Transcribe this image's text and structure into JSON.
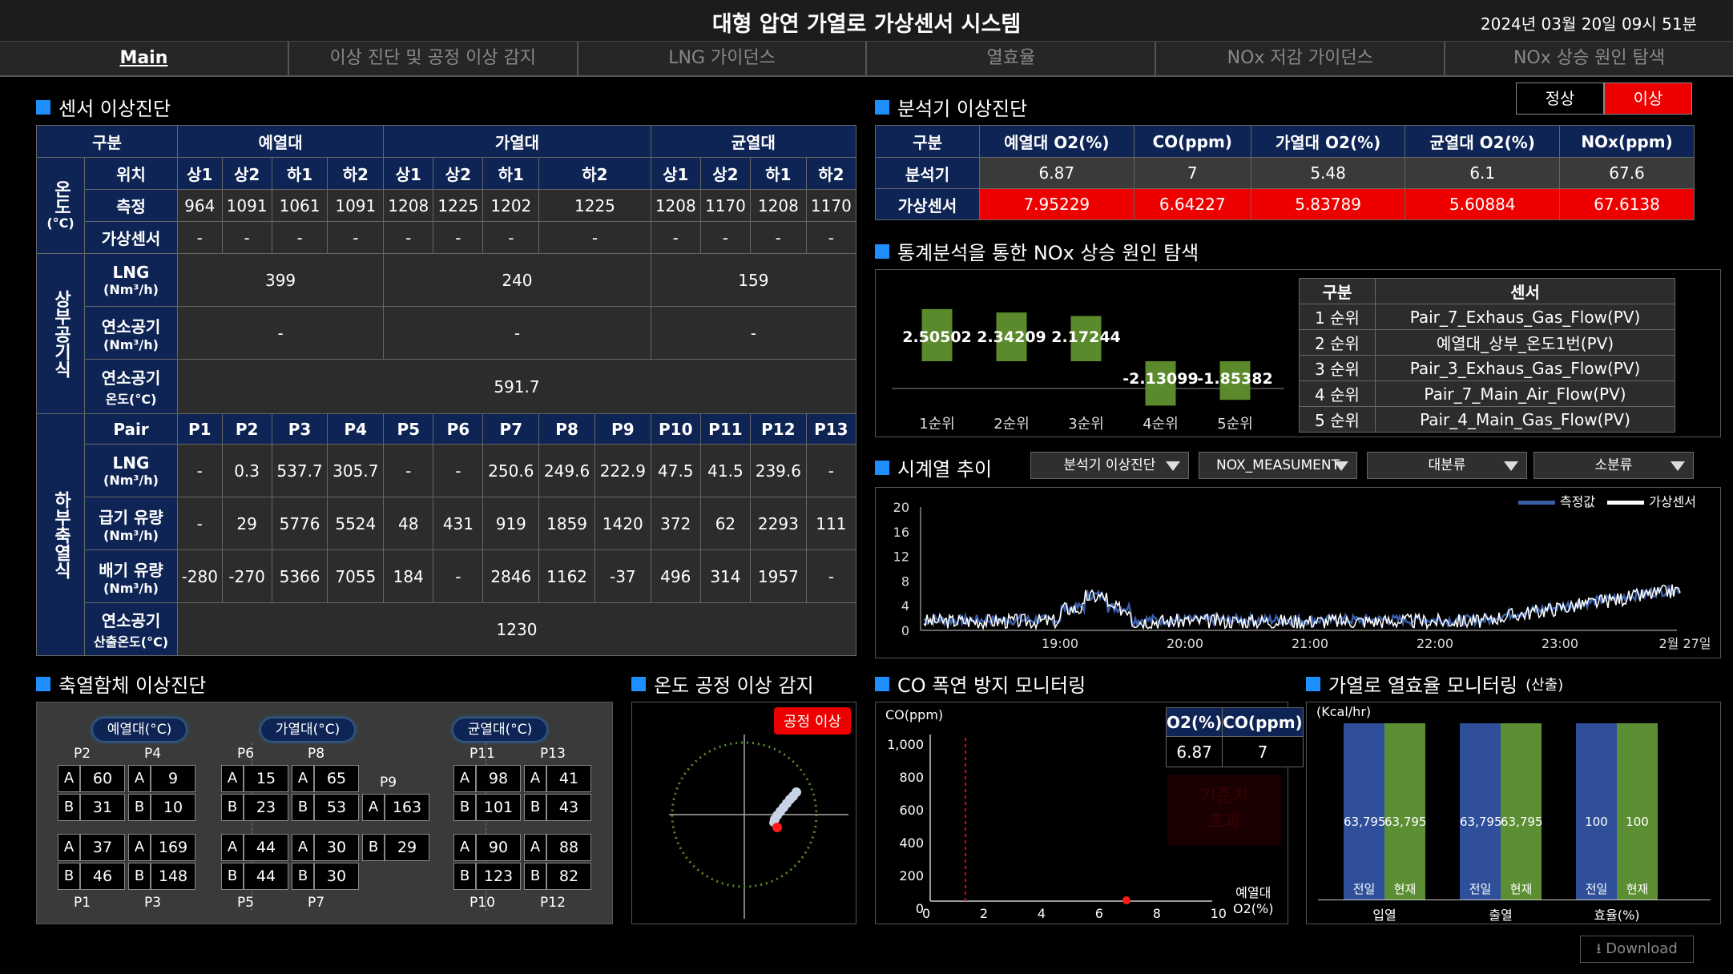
{
  "header": {
    "title": "대형 압연 가열로 가상센서 시스템",
    "datetime": "2024년 03월 20일 09시 51분"
  },
  "nav": {
    "tabs": [
      "Main",
      "이상 진단 및 공정 이상 감지",
      "LNG 가이던스",
      "열효율",
      "NOx 저감 가이던스",
      "NOx 상승 원인 탐색"
    ]
  },
  "sensor": {
    "title": "센서 이상진단",
    "col_group": "구분",
    "zones": [
      "예열대",
      "가열대",
      "균열대"
    ],
    "temp": {
      "group_label": "온도",
      "unit": "(°C)",
      "rows": [
        "위치",
        "측정",
        "가상센서"
      ],
      "positions": [
        "상1",
        "상2",
        "하1",
        "하2",
        "상1",
        "상2",
        "하1",
        "하2",
        "상1",
        "상2",
        "하1",
        "하2"
      ],
      "measured": [
        "964",
        "1091",
        "1061",
        "1091",
        "1208",
        "1225",
        "1202",
        "1225",
        "1208",
        "1170",
        "1208",
        "1170"
      ],
      "virtual": [
        "-",
        "-",
        "-",
        "-",
        "-",
        "-",
        "-",
        "-",
        "-",
        "-",
        "-",
        "-"
      ]
    },
    "upper": {
      "group_label": "상부공기식",
      "lng_label": "LNG",
      "lng_unit": "(Nm³/h)",
      "lng": [
        "399",
        "240",
        "159"
      ],
      "air_label": "연소공기",
      "air_unit": "(Nm³/h)",
      "air": [
        "-",
        "-",
        "-"
      ],
      "airtemp_label": "연소공기",
      "airtemp_unit": "온도(°C)",
      "airtemp": "591.7"
    },
    "lower": {
      "group_label": "하부축열식",
      "pair_label": "Pair",
      "pairs": [
        "P1",
        "P2",
        "P3",
        "P4",
        "P5",
        "P6",
        "P7",
        "P8",
        "P9",
        "P10",
        "P11",
        "P12",
        "P13"
      ],
      "lng_label": "LNG",
      "lng_unit": "(Nm³/h)",
      "lng": [
        "-",
        "0.3",
        "537.7",
        "305.7",
        "-",
        "-",
        "250.6",
        "249.6",
        "222.9",
        "47.5",
        "41.5",
        "239.6",
        "-"
      ],
      "supply_label": "급기 유량",
      "supply_unit": "(Nm³/h)",
      "supply": [
        "-",
        "29",
        "5776",
        "5524",
        "48",
        "431",
        "919",
        "1859",
        "1420",
        "372",
        "62",
        "2293",
        "111"
      ],
      "exhaust_label": "배기 유량",
      "exhaust_unit": "(Nm³/h)",
      "exhaust": [
        "-280",
        "-270",
        "5366",
        "7055",
        "184",
        "-",
        "2846",
        "1162",
        "-37",
        "496",
        "314",
        "1957",
        "-"
      ],
      "calc_label": "연소공기",
      "calc_unit": "산출온도(°C)",
      "calc": "1230"
    }
  },
  "analyzer": {
    "title": "분석기 이상진단",
    "normal": "정상",
    "abnormal": "이상",
    "headers": [
      "구분",
      "예열대 O2(%)",
      "CO(ppm)",
      "가열대 O2(%)",
      "균열대 O2(%)",
      "NOx(ppm)"
    ],
    "analyzer_label": "분석기",
    "analyzer_vals": [
      "6.87",
      "7",
      "5.48",
      "6.1",
      "67.6"
    ],
    "virtual_label": "가상센서",
    "virtual_vals": [
      "7.95229",
      "6.64227",
      "5.83789",
      "5.60884",
      "67.6138"
    ]
  },
  "stats": {
    "title": "통계분석을 통한 NOx 상승 원인 탐색",
    "chart_data": {
      "type": "bar",
      "categories": [
        "1순위",
        "2순위",
        "3순위",
        "4순위",
        "5순위"
      ],
      "values": [
        2.50502,
        2.34209,
        2.17244,
        -2.13099,
        -1.85382
      ],
      "labels": [
        "2.50502",
        "2.34209",
        "2.17244",
        "-2.13099",
        "-1.85382"
      ],
      "color": "#5a8a2c"
    },
    "rank_headers": [
      "구분",
      "센서"
    ],
    "ranks": [
      {
        "rank": "1 순위",
        "sensor": "Pair_7_Exhaus_Gas_Flow(PV)"
      },
      {
        "rank": "2 순위",
        "sensor": "예열대_상부_온도1번(PV)"
      },
      {
        "rank": "3 순위",
        "sensor": "Pair_3_Exhaus_Gas_Flow(PV)"
      },
      {
        "rank": "4 순위",
        "sensor": "Pair_7_Main_Air_Flow(PV)"
      },
      {
        "rank": "5 순위",
        "sensor": "Pair_4_Main_Gas_Flow(PV)"
      }
    ]
  },
  "timeseries": {
    "title": "시계열 추이",
    "dropdowns": [
      "분석기 이상진단",
      "NOX_MEASUMENT",
      "대분류",
      "소분류"
    ],
    "legend": [
      "측정값",
      "가상센서"
    ],
    "chart_data": {
      "type": "line",
      "y_ticks": [
        "20",
        "16",
        "12",
        "8",
        "4",
        "0"
      ],
      "ylim": [
        0,
        20
      ],
      "x_ticks": [
        "19:00",
        "20:00",
        "21:00",
        "22:00",
        "23:00",
        "2월 27일"
      ],
      "series": [
        {
          "name": "측정값",
          "color": "#3a5fa8"
        },
        {
          "name": "가상센서",
          "color": "#ffffff"
        }
      ]
    }
  },
  "regen": {
    "title": "축열함체 이상진단",
    "zones": [
      "예열대(°C)",
      "가열대(°C)",
      "균열대(°C)"
    ],
    "a": "A",
    "b": "B",
    "units": [
      {
        "label": "P2",
        "a": "60",
        "b": "31"
      },
      {
        "label": "P4",
        "a": "9",
        "b": "10"
      },
      {
        "label": "P1",
        "a": "37",
        "b": "46"
      },
      {
        "label": "P3",
        "a": "169",
        "b": "148"
      },
      {
        "label": "P6",
        "a": "15",
        "b": "23"
      },
      {
        "label": "P8",
        "a": "65",
        "b": "53"
      },
      {
        "label": "P9",
        "a": "163",
        "b": ""
      },
      {
        "label": "P5",
        "a": "44",
        "b": "44"
      },
      {
        "label": "P7",
        "a": "30",
        "b": "30"
      },
      {
        "label": "",
        "a": "",
        "b": "29"
      },
      {
        "label": "P11",
        "a": "98",
        "b": "101"
      },
      {
        "label": "P13",
        "a": "41",
        "b": "43"
      },
      {
        "label": "P10",
        "a": "90",
        "b": "123"
      },
      {
        "label": "P12",
        "a": "88",
        "b": "82"
      }
    ]
  },
  "process": {
    "title": "온도 공정 이상 감지",
    "alert": "공정 이상"
  },
  "co": {
    "title": "CO 폭연 방지 모니터링",
    "ylabel": "CO(ppm)",
    "y_ticks": [
      "1,000",
      "800",
      "600",
      "400",
      "200",
      "0"
    ],
    "x_ticks": [
      "0",
      "2",
      "4",
      "6",
      "8",
      "10"
    ],
    "xlabel1": "예열대",
    "xlabel2": "O2(%)",
    "o2_head": "O2(%)",
    "co_head": "CO(ppm)",
    "o2": "6.87",
    "co": "7",
    "warn1": "기준치",
    "warn2": "초과"
  },
  "eff": {
    "title": "가열로 열효율 모니터링",
    "title_sub": "(산출)",
    "unit": "(Kcal/hr)",
    "groups": [
      {
        "name": "입열",
        "prev": "63,795",
        "cur": "63,795"
      },
      {
        "name": "출열",
        "prev": "63,795",
        "cur": "63,795"
      },
      {
        "name": "효율(%)",
        "prev": "100",
        "cur": "100"
      }
    ],
    "prev_label": "전일",
    "cur_label": "현재",
    "colors": {
      "prev": "#2f4f9a",
      "cur": "#5c8f34"
    }
  },
  "download": "Download"
}
